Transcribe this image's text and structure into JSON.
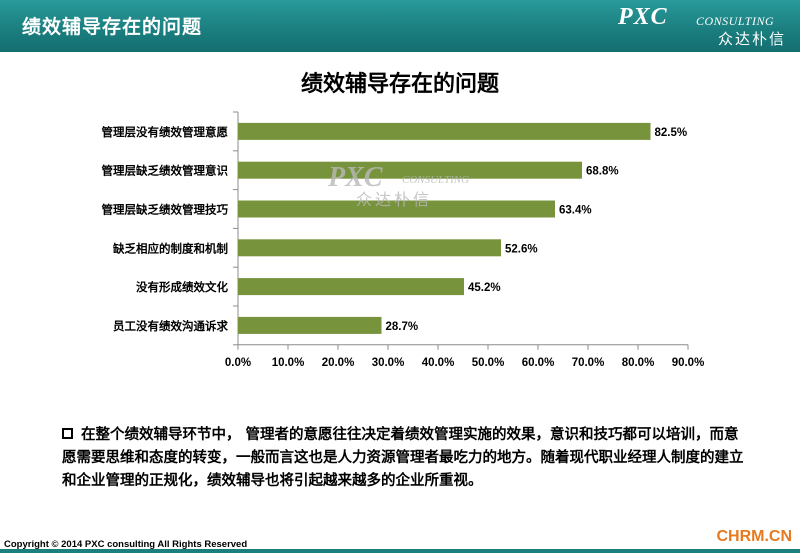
{
  "header": {
    "title": "绩效辅导存在的问题",
    "logo_pxc": "PXC",
    "logo_consulting": "CONSULTING",
    "logo_cn": "众达朴信"
  },
  "watermark": {
    "pxc": "PXC",
    "consulting": "CONSULTING",
    "cn": "众达朴信"
  },
  "chart_data": {
    "type": "bar",
    "orientation": "horizontal",
    "title": "绩效辅导存在的问题",
    "categories": [
      "管理层没有绩效管理意愿",
      "管理层缺乏绩效管理意识",
      "管理层缺乏绩效管理技巧",
      "缺乏相应的制度和机制",
      "没有形成绩效文化",
      "员工没有绩效沟通诉求"
    ],
    "values": [
      82.5,
      68.8,
      63.4,
      52.6,
      45.2,
      28.7
    ],
    "value_labels": [
      "82.5%",
      "68.8%",
      "63.4%",
      "52.6%",
      "45.2%",
      "28.7%"
    ],
    "xlim": [
      0,
      90
    ],
    "xticks": [
      0,
      10,
      20,
      30,
      40,
      50,
      60,
      70,
      80,
      90
    ],
    "xtick_labels": [
      "0.0%",
      "10.0%",
      "20.0%",
      "30.0%",
      "40.0%",
      "50.0%",
      "60.0%",
      "70.0%",
      "80.0%",
      "90.0%"
    ],
    "xlabel": "",
    "ylabel": "",
    "bar_color": "#77933c",
    "grid": false,
    "legend": false
  },
  "note": {
    "text": "在整个绩效辅导环节中， 管理者的意愿往往决定着绩效管理实施的效果，意识和技巧都可以培训，而意愿需要思维和态度的转变，一般而言这也是人力资源管理者最吃力的地方。随着现代职业经理人制度的建立和企业管理的正规化，绩效辅导也将引起越来越多的企业所重视。"
  },
  "footer": {
    "copyright": "Copyright © 2014  PXC consulting All Rights Reserved",
    "site": "CHRM.CN"
  }
}
